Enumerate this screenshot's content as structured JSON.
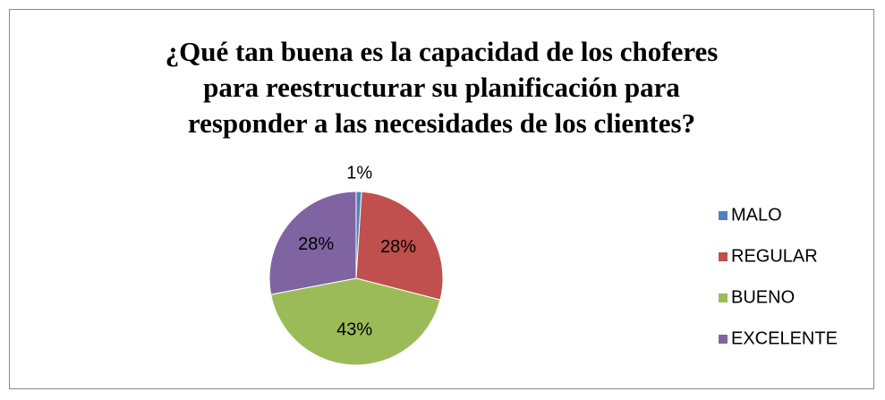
{
  "chart_data": {
    "type": "pie",
    "title": "¿Qué tan buena es la capacidad de los choferes\npara reestructurar su planificación para\nresponder a las necesidades de los clientes?",
    "categories": [
      "MALO",
      "REGULAR",
      "BUENO",
      "EXCELENTE"
    ],
    "values": [
      1,
      28,
      43,
      28
    ],
    "value_labels": [
      "1%",
      "28%",
      "43%",
      "28%"
    ],
    "colors": [
      "#4f81bd",
      "#c0504d",
      "#9bbb59",
      "#8064a2"
    ],
    "legend": "right"
  }
}
